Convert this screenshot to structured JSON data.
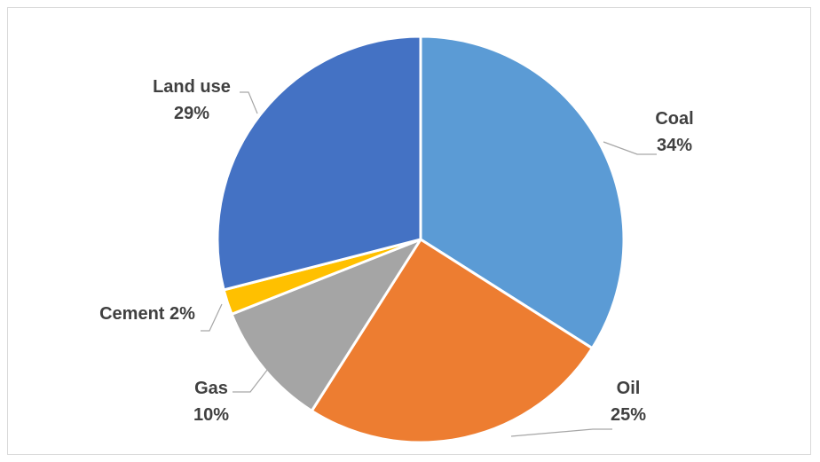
{
  "chart_data": {
    "type": "pie",
    "title": "",
    "slices": [
      {
        "name": "Coal",
        "value": 34,
        "color": "#5B9BD5",
        "label_lines": [
          "Coal",
          "34%"
        ]
      },
      {
        "name": "Oil",
        "value": 25,
        "color": "#ED7D31",
        "label_lines": [
          "Oil",
          "25%"
        ]
      },
      {
        "name": "Gas",
        "value": 10,
        "color": "#A5A5A5",
        "label_lines": [
          "Gas",
          "10%"
        ]
      },
      {
        "name": "Cement",
        "value": 2,
        "color": "#FFC000",
        "label_lines": [
          "Cement 2%"
        ]
      },
      {
        "name": "Land use",
        "value": 29,
        "color": "#4472C4",
        "label_lines": [
          "Land use",
          "29%"
        ]
      }
    ],
    "legend": "none",
    "data_labels": "outside-with-leader-lines"
  }
}
